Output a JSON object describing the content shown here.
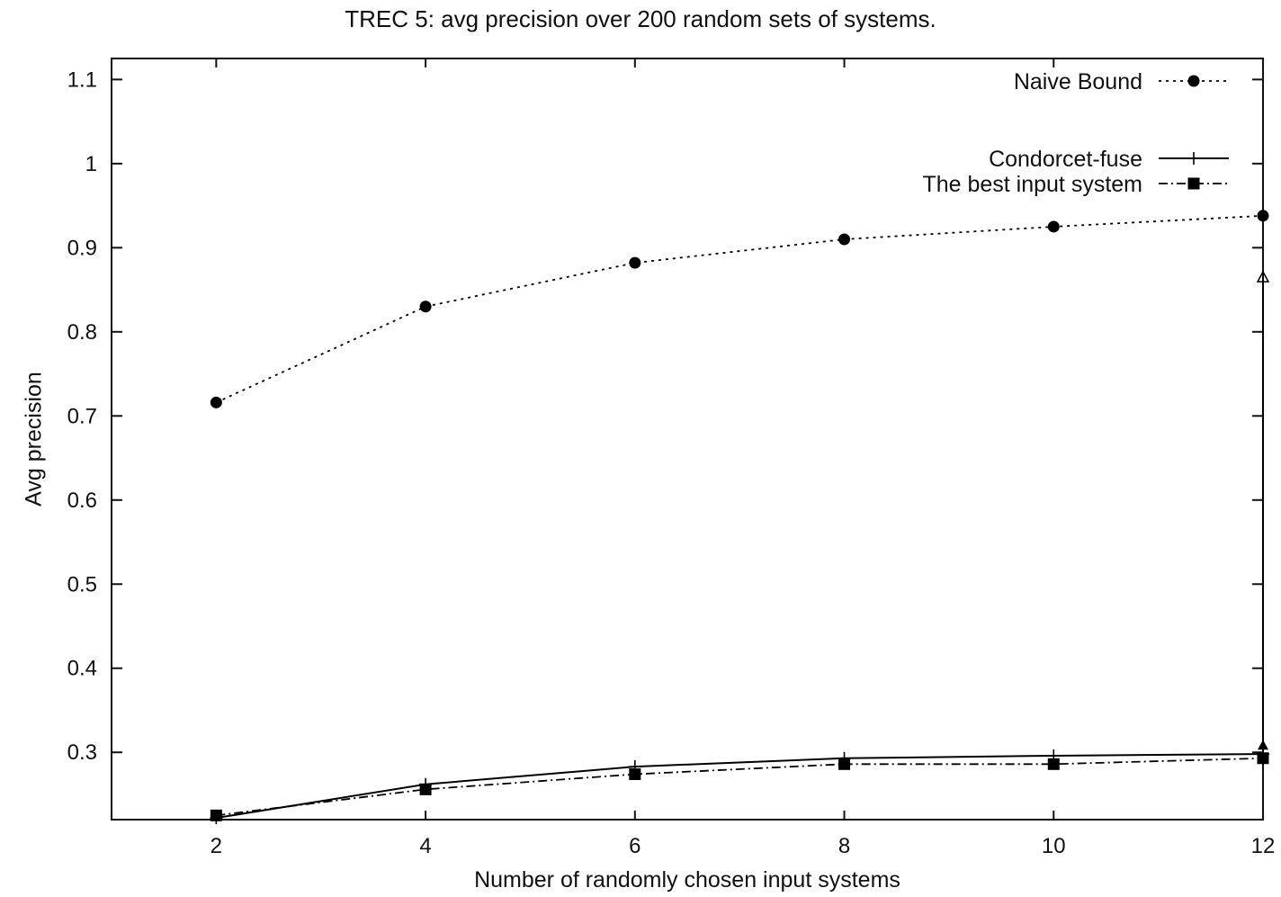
{
  "chart_data": {
    "type": "line",
    "title": "TREC 5: avg precision over 200 random sets of systems.",
    "xlabel": "Number of randomly chosen input systems",
    "ylabel": "Avg precision",
    "xlim": [
      1,
      12
    ],
    "ylim": [
      0.22,
      1.125
    ],
    "x_ticks": [
      2,
      4,
      6,
      8,
      10,
      12
    ],
    "y_ticks": [
      0.3,
      0.4,
      0.5,
      0.6,
      0.7,
      0.8,
      0.9,
      1,
      1.1
    ],
    "x_tick_labels": [
      "2",
      "4",
      "6",
      "8",
      "10",
      "12"
    ],
    "y_tick_labels": [
      "0.3",
      "0.4",
      "0.5",
      "0.6",
      "0.7",
      "0.8",
      "0.9",
      "1",
      "1.1"
    ],
    "grid": false,
    "legend_position": "top-right",
    "series": [
      {
        "name": "Naive Bound",
        "style": "dotted",
        "marker": "circle",
        "color": "#000000",
        "x": [
          2,
          4,
          6,
          8,
          10,
          12
        ],
        "y": [
          0.716,
          0.83,
          0.882,
          0.91,
          0.925,
          0.938
        ]
      },
      {
        "name": "Condorcet-fuse",
        "style": "solid",
        "marker": "plus",
        "color": "#000000",
        "x": [
          2,
          4,
          6,
          8,
          10,
          12
        ],
        "y": [
          0.222,
          0.262,
          0.283,
          0.293,
          0.296,
          0.298
        ]
      },
      {
        "name": "The best input system",
        "style": "dashdot",
        "marker": "square",
        "color": "#000000",
        "x": [
          2,
          4,
          6,
          8,
          10,
          12
        ],
        "y": [
          0.225,
          0.256,
          0.274,
          0.286,
          0.286,
          0.293
        ]
      }
    ],
    "annotations": [
      {
        "type": "vertical-range",
        "x": 12,
        "y_min": 0.3,
        "y_max": 0.866
      }
    ]
  }
}
